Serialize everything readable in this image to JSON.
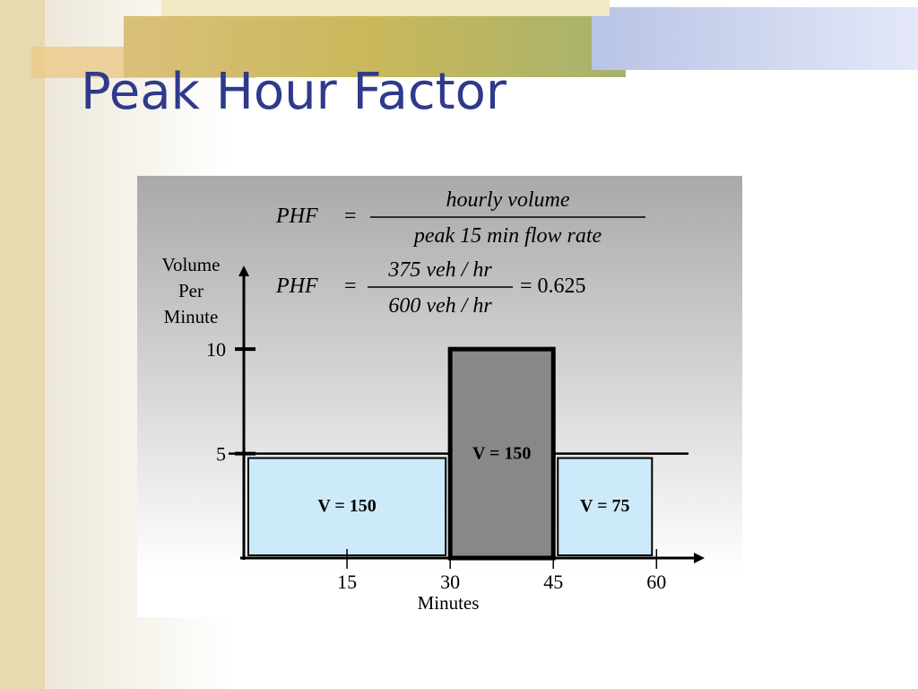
{
  "chart_data": {
    "type": "histogram",
    "title": "Peak Hour Factor",
    "formulas": [
      {
        "lhs": "PHF",
        "eq": "=",
        "numerator": "hourly   volume",
        "denominator": "peak  15  min  flow  rate"
      },
      {
        "lhs": "PHF",
        "eq": "=",
        "numerator": "375  veh / hr",
        "denominator": "600  veh / hr",
        "result": "= 0.625"
      }
    ],
    "ylabel": "Volume Per Minute",
    "xlabel": "Minutes",
    "bins": [
      0,
      30,
      45,
      60
    ],
    "values": [
      5,
      10,
      5
    ],
    "annotations": [
      "V = 150",
      "V = 150",
      "V = 75"
    ],
    "colors": [
      "#cdeafb",
      "#888888",
      "#cdeafb"
    ],
    "hline": 5,
    "xlim": [
      0,
      67
    ],
    "ylim": [
      0,
      14
    ],
    "xticks": [
      15,
      30,
      45,
      60
    ],
    "yticks": [
      5,
      10
    ]
  }
}
